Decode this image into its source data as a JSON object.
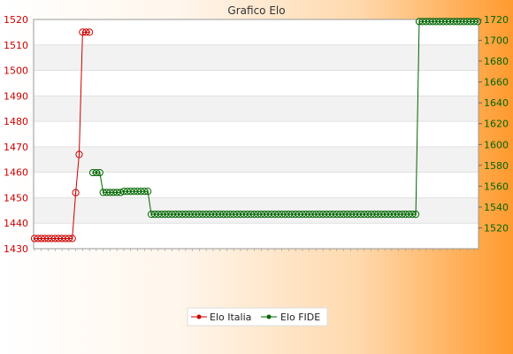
{
  "chart_data": {
    "type": "line",
    "title": "Grafico Elo",
    "x_tick_labels_legible": false,
    "grid": true,
    "legend_position": "bottom",
    "y_left": {
      "series": "Elo Italia",
      "ylim": [
        1430,
        1520
      ],
      "ticks": [
        1430,
        1440,
        1450,
        1460,
        1470,
        1480,
        1490,
        1500,
        1510,
        1520
      ]
    },
    "y_right": {
      "series": "Elo FIDE",
      "ylim": [
        1500,
        1720
      ],
      "ticks": [
        1520,
        1540,
        1560,
        1580,
        1600,
        1620,
        1640,
        1660,
        1680,
        1700,
        1720
      ]
    },
    "n_points": 130,
    "series": [
      {
        "name": "Elo Italia",
        "color": "#cc0000",
        "axis": "left",
        "points": [
          [
            0,
            1434
          ],
          [
            1,
            1434
          ],
          [
            2,
            1434
          ],
          [
            3,
            1434
          ],
          [
            4,
            1434
          ],
          [
            5,
            1434
          ],
          [
            6,
            1434
          ],
          [
            7,
            1434
          ],
          [
            8,
            1434
          ],
          [
            9,
            1434
          ],
          [
            10,
            1434
          ],
          [
            11,
            1434
          ],
          [
            12,
            1452
          ],
          [
            13,
            1467
          ],
          [
            14,
            1515
          ],
          [
            15,
            1515
          ],
          [
            16,
            1515
          ]
        ]
      },
      {
        "name": "Elo FIDE",
        "color": "#006600",
        "axis": "right",
        "segments": [
          {
            "from": 17,
            "to": 19,
            "value": 1573
          },
          {
            "from": 20,
            "to": 25,
            "value": 1554
          },
          {
            "from": 26,
            "to": 33,
            "value": 1555
          },
          {
            "from": 34,
            "to": 111,
            "value": 1533
          },
          {
            "from": 112,
            "to": 129,
            "value": 1718
          }
        ]
      }
    ]
  }
}
